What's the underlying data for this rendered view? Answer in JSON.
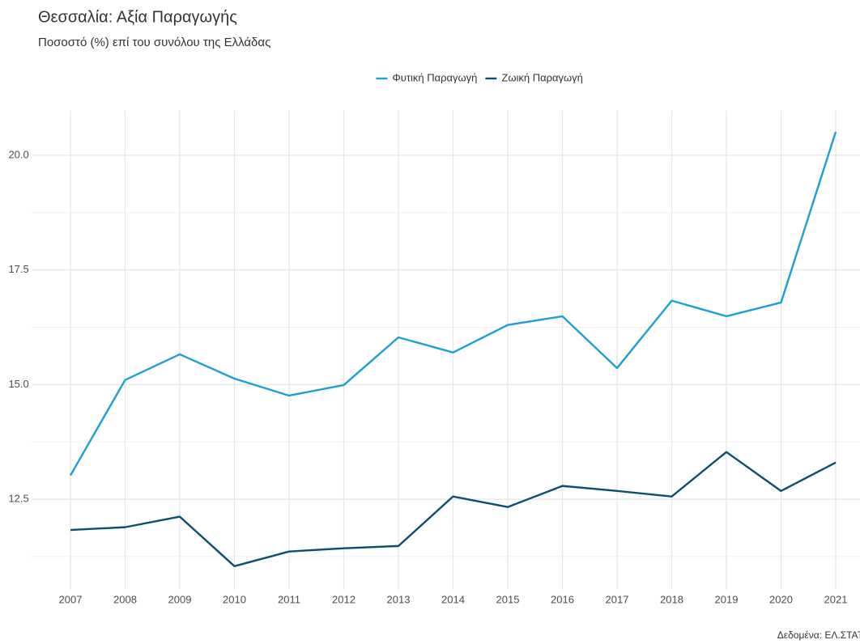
{
  "chart_data": {
    "type": "line",
    "title": "Θεσσαλία: Αξία Παραγωγής",
    "subtitle": "Ποσοστό (%) επί του συνόλου της Ελλάδας",
    "caption": "Δεδομένα: ΕΛ.ΣΤΑΤ",
    "x": [
      2007,
      2008,
      2009,
      2010,
      2011,
      2012,
      2013,
      2014,
      2015,
      2016,
      2017,
      2018,
      2019,
      2020,
      2021
    ],
    "xlim": [
      2006.3,
      2021.7
    ],
    "xticks": [
      2007,
      2008,
      2009,
      2010,
      2011,
      2012,
      2013,
      2014,
      2015,
      2016,
      2017,
      2018,
      2019,
      2020,
      2021
    ],
    "ylim": [
      10.525,
      20.975
    ],
    "yticks": [
      {
        "value": 12.5,
        "label": "12.5"
      },
      {
        "value": 15,
        "label": "15.0"
      },
      {
        "value": 17.5,
        "label": "17.5"
      },
      {
        "value": 20,
        "label": "20.0"
      }
    ],
    "minor_yticks": [
      11.25,
      13.75,
      16.25,
      18.75
    ],
    "grid": true,
    "legend": "top",
    "series": [
      {
        "name": "Φυτική Παραγωγή",
        "color": "#1b9fd6",
        "values": [
          13.02,
          15.1,
          15.66,
          15.13,
          14.76,
          14.99,
          16.03,
          15.7,
          16.3,
          16.49,
          15.36,
          16.83,
          16.49,
          16.79,
          20.51
        ]
      },
      {
        "name": "Ζωική Παραγωγή",
        "color": "#0b4f6c",
        "values": [
          11.83,
          11.89,
          12.12,
          11.04,
          11.36,
          11.43,
          11.48,
          12.56,
          12.33,
          12.79,
          12.68,
          12.56,
          13.53,
          12.68,
          13.3
        ]
      }
    ]
  }
}
